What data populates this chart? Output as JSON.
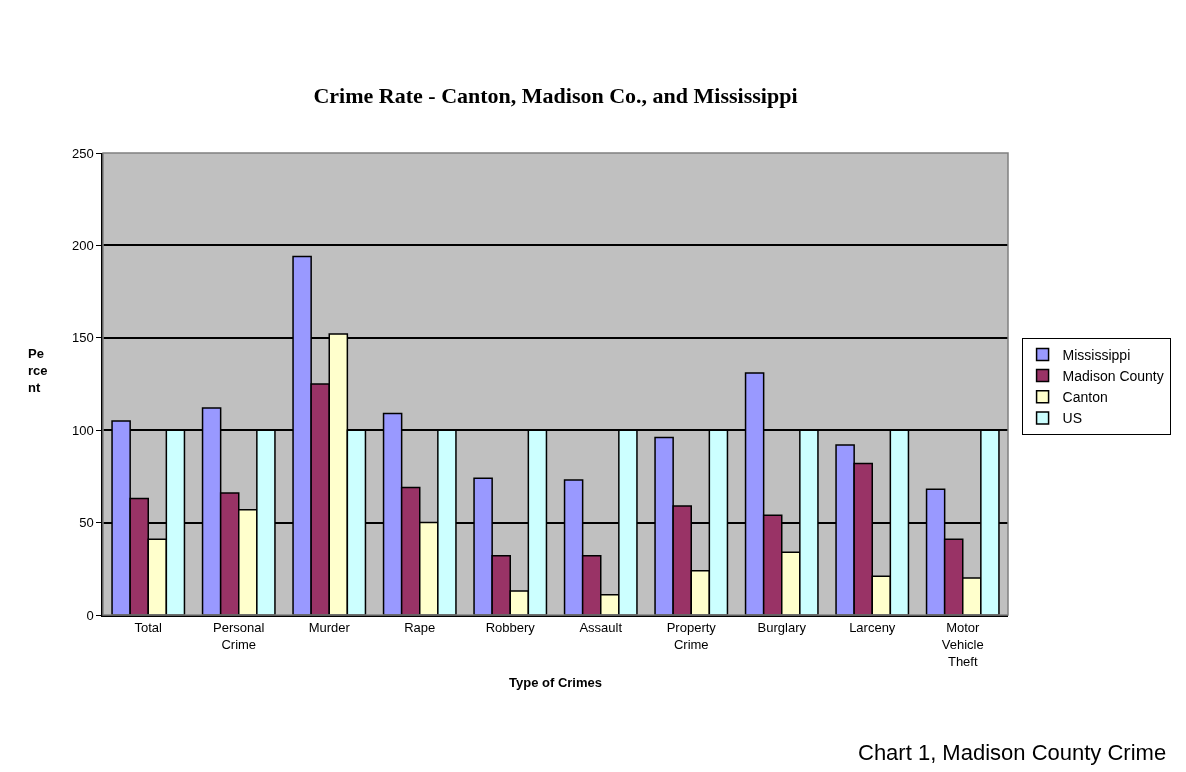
{
  "chart_data": {
    "type": "bar",
    "title": "Crime Rate - Canton, Madison Co., and Mississippi",
    "xlabel": "Type of Crimes",
    "ylabel": "Pe\nrce\nnt",
    "categories": [
      "Total",
      "Personal\nCrime",
      "Murder",
      "Rape",
      "Robbery",
      "Assault",
      "Property\nCrime",
      "Burglary",
      "Larceny",
      "Motor\nVehicle\nTheft"
    ],
    "series": [
      {
        "name": "Mississippi",
        "color": "#9999ff",
        "values": [
          105,
          112,
          194,
          109,
          74,
          73,
          96,
          131,
          92,
          68
        ]
      },
      {
        "name": "Madison County",
        "color": "#993366",
        "values": [
          63,
          66,
          125,
          69,
          32,
          32,
          59,
          54,
          82,
          41
        ]
      },
      {
        "name": "Canton",
        "color": "#ffffcc",
        "values": [
          41,
          57,
          152,
          50,
          13,
          11,
          24,
          34,
          21,
          20
        ]
      },
      {
        "name": "US",
        "color": "#ccffff",
        "values": [
          100,
          100,
          100,
          100,
          100,
          100,
          100,
          100,
          100,
          100
        ]
      }
    ],
    "ylim": [
      0,
      250
    ],
    "yticks": [
      0,
      50,
      100,
      150,
      200,
      250
    ],
    "grid": "y",
    "legend": "right",
    "annotations": [
      "Chart 1, Madison County Crime"
    ]
  }
}
